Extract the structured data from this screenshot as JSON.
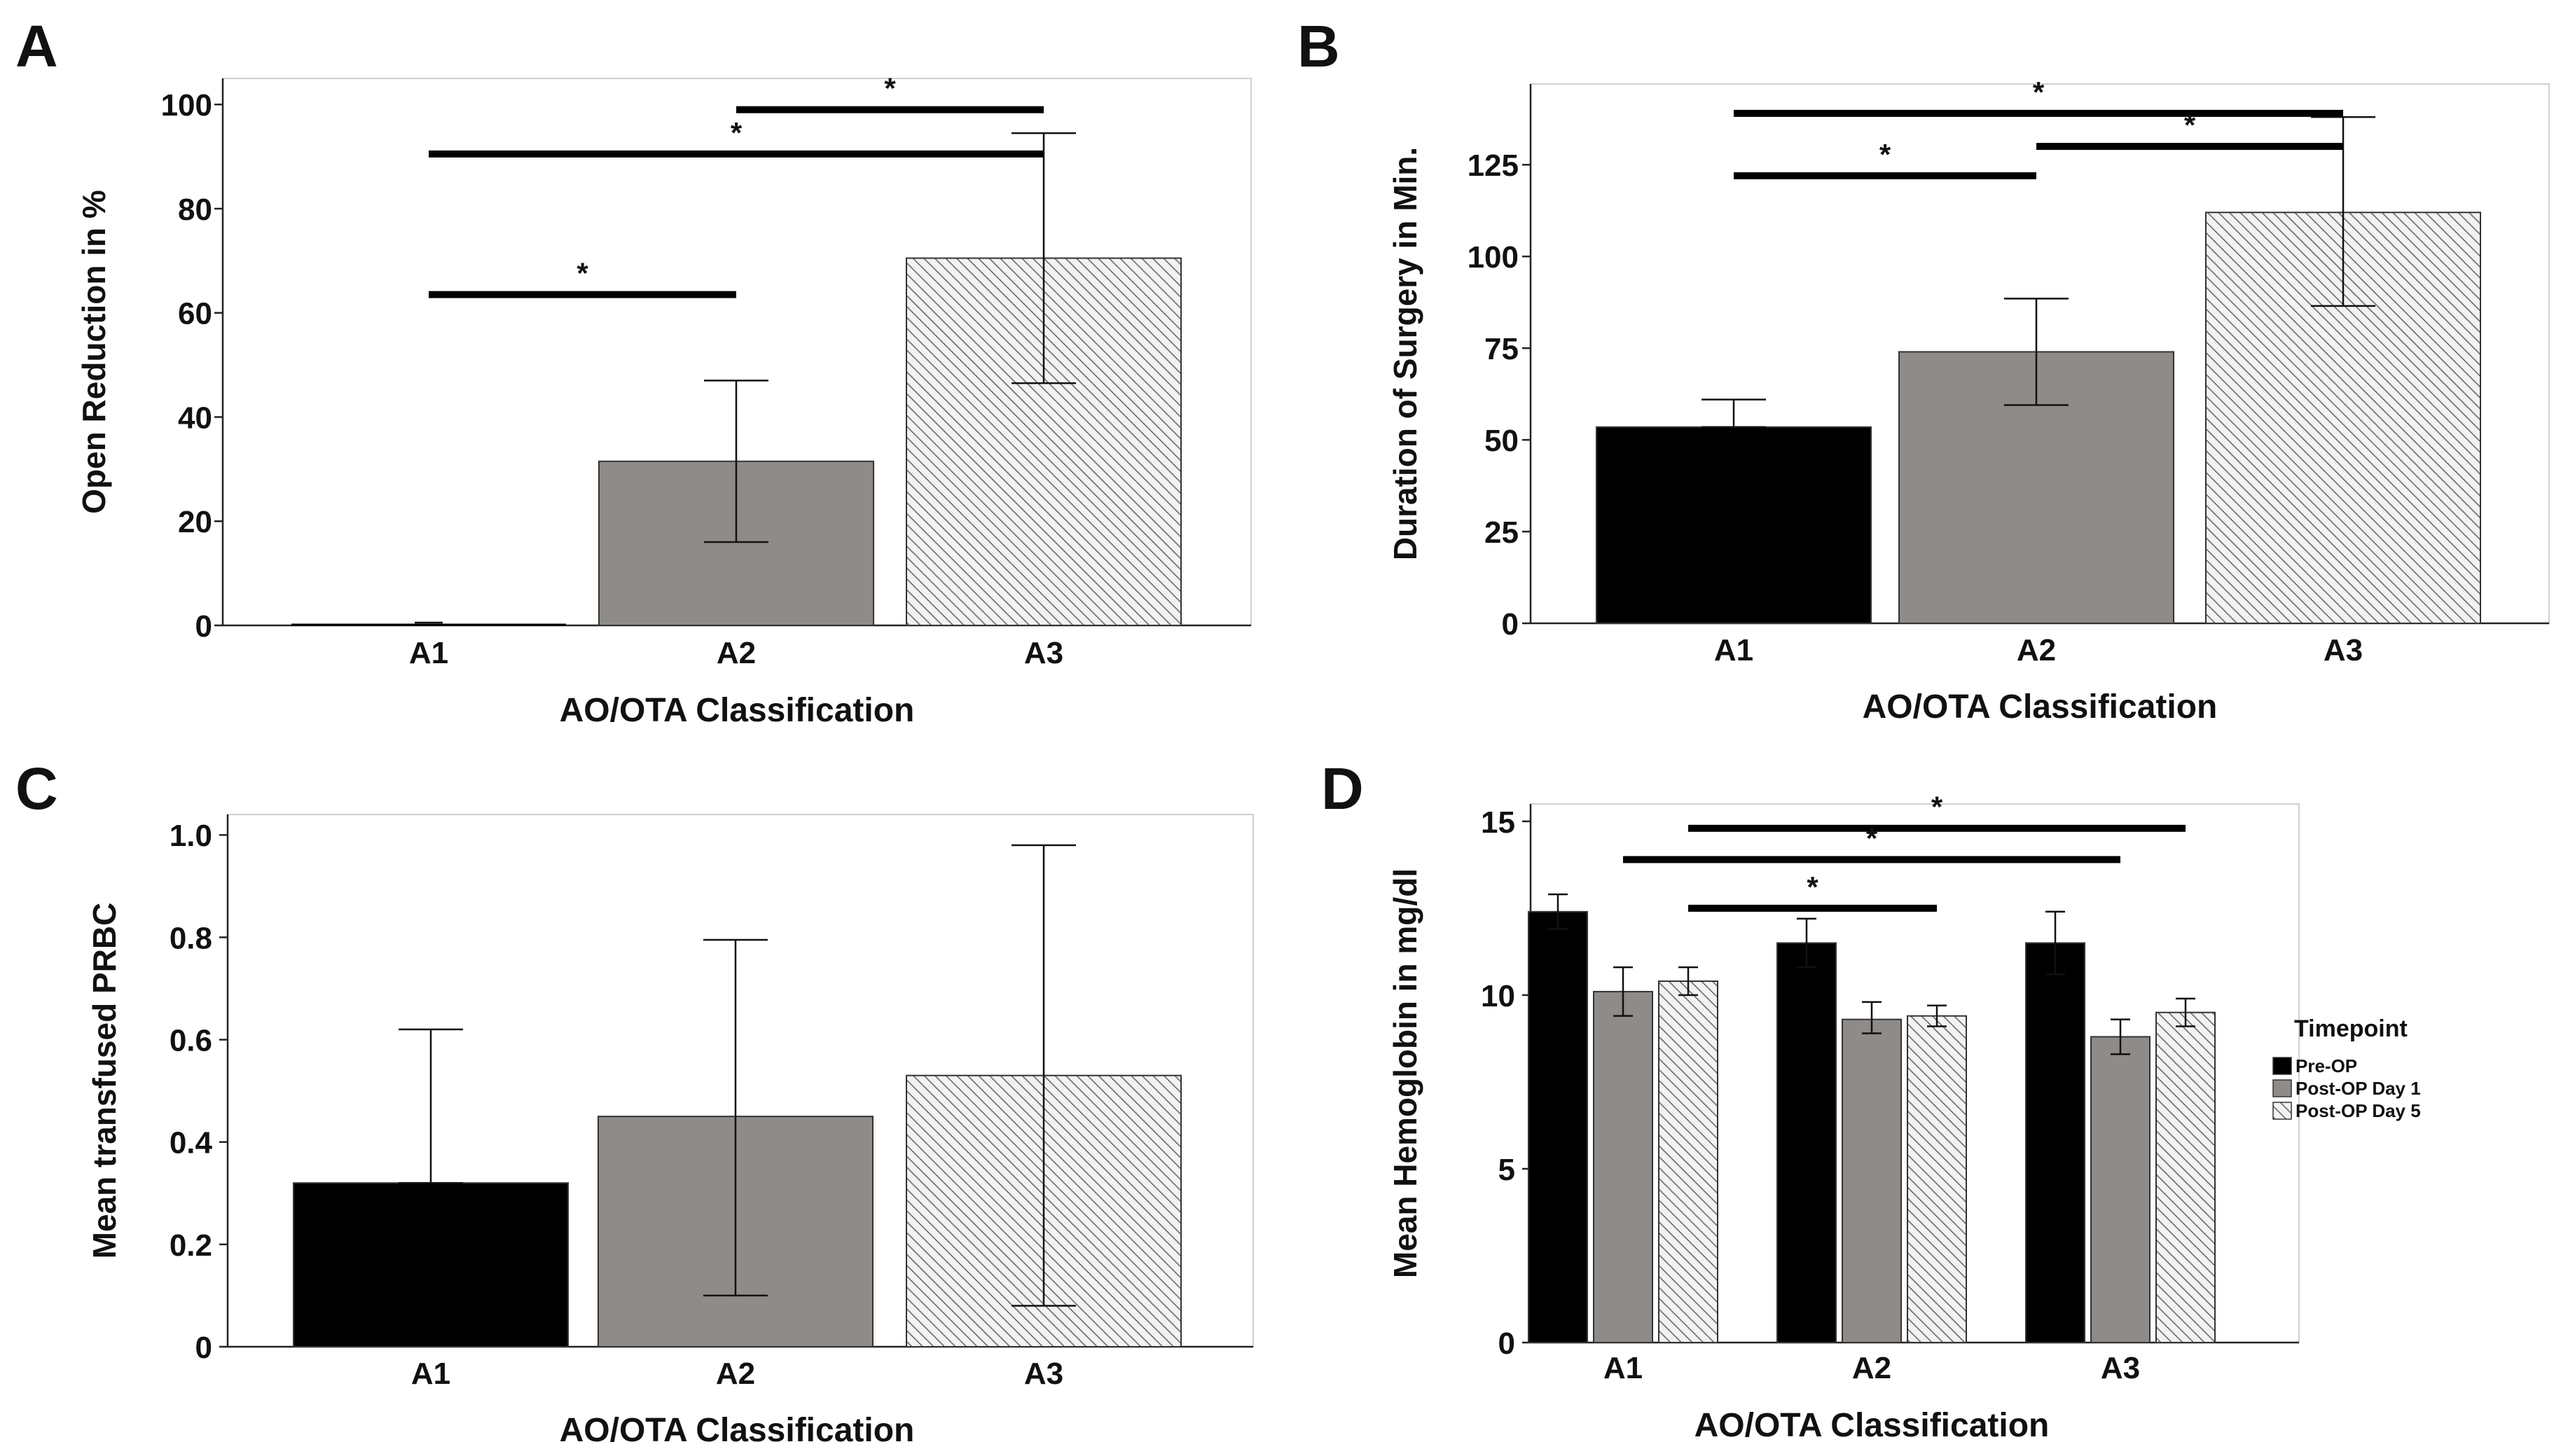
{
  "colors": {
    "black": "#000000",
    "gray": "#8f8b89",
    "hatch_bg": "#f2f2f2",
    "hatch_line": "#6a6a6a",
    "axis": "#222222"
  },
  "chart_data": [
    {
      "panel": "A",
      "type": "bar",
      "categories": [
        "A1",
        "A2",
        "A3"
      ],
      "values": [
        0,
        31.5,
        70.5
      ],
      "error_low": [
        0,
        16,
        46.5
      ],
      "error_high": [
        0,
        47,
        94.5
      ],
      "fills": [
        "black",
        "gray",
        "hatch"
      ],
      "yticks": [
        "0",
        "20",
        "40",
        "60",
        "80",
        "100"
      ],
      "ylim": [
        0,
        105
      ],
      "ylabel": "Open Reduction in %",
      "xlabel": "AO/OTA Classification",
      "significance": [
        {
          "from": "A1",
          "to": "A3",
          "y": 90.5,
          "label": "*"
        },
        {
          "from": "A2",
          "to": "A3",
          "y": 99,
          "label": "*"
        },
        {
          "from": "A1",
          "to": "A2",
          "y": 63.5,
          "label": "*"
        }
      ]
    },
    {
      "panel": "B",
      "type": "bar",
      "categories": [
        "A1",
        "A2",
        "A3"
      ],
      "values": [
        53.5,
        74,
        112
      ],
      "error_low": [
        53.5,
        59.5,
        86.5
      ],
      "error_high": [
        61,
        88.5,
        138
      ],
      "fills": [
        "black",
        "gray",
        "hatch"
      ],
      "yticks": [
        "0",
        "25",
        "50",
        "75",
        "100",
        "125"
      ],
      "ylim": [
        0,
        147
      ],
      "ylabel": "Duration of Surgery in Min.",
      "xlabel": "AO/OTA Classification",
      "significance": [
        {
          "from": "A1",
          "to": "A3",
          "y": 139,
          "label": "*"
        },
        {
          "from": "A1",
          "to": "A2",
          "y": 122,
          "label": "*"
        },
        {
          "from": "A2",
          "to": "A3",
          "y": 130,
          "label": "*"
        }
      ]
    },
    {
      "panel": "C",
      "type": "bar",
      "categories": [
        "A1",
        "A2",
        "A3"
      ],
      "values": [
        0.32,
        0.45,
        0.53
      ],
      "error_low": [
        0.32,
        0.1,
        0.08
      ],
      "error_high": [
        0.62,
        0.795,
        0.98
      ],
      "fills": [
        "black",
        "gray",
        "hatch"
      ],
      "yticks": [
        "0",
        "0.2",
        "0.4",
        "0.6",
        "0.8",
        "1.0"
      ],
      "ylim": [
        0,
        1.04
      ],
      "ylabel": "Mean transfused PRBC",
      "xlabel": "AO/OTA Classification",
      "significance": []
    },
    {
      "panel": "D",
      "type": "bar",
      "categories": [
        "A1",
        "A2",
        "A3"
      ],
      "series": [
        {
          "name": "Pre-OP",
          "fill": "black",
          "values": [
            12.4,
            11.5,
            11.5
          ],
          "error_low": [
            11.9,
            10.8,
            10.6
          ],
          "error_high": [
            12.9,
            12.2,
            12.4
          ]
        },
        {
          "name": "Post-OP Day 1",
          "fill": "gray",
          "values": [
            10.1,
            9.3,
            8.8
          ],
          "error_low": [
            9.4,
            8.9,
            8.3
          ],
          "error_high": [
            10.8,
            9.8,
            9.3
          ]
        },
        {
          "name": "Post-OP Day 5",
          "fill": "hatch",
          "values": [
            10.4,
            9.4,
            9.5
          ],
          "error_low": [
            10.0,
            9.1,
            9.1
          ],
          "error_high": [
            10.8,
            9.7,
            9.9
          ]
        }
      ],
      "yticks": [
        "0",
        "5",
        "10",
        "15"
      ],
      "ylim": [
        0,
        15.5
      ],
      "ylabel": "Mean Hemoglobin in mg/dl",
      "xlabel": "AO/OTA Classification",
      "legend_title": "Timepoint",
      "legend_position": "right",
      "significance": [
        {
          "from_group": 0,
          "from_series": 2,
          "to_group": 2,
          "to_series": 2,
          "y": 14.8,
          "label": "*"
        },
        {
          "from_group": 0,
          "from_series": 1,
          "to_group": 2,
          "to_series": 1,
          "y": 13.9,
          "label": "*"
        },
        {
          "from_group": 0,
          "from_series": 2,
          "to_group": 1,
          "to_series": 2,
          "y": 12.5,
          "label": "*"
        }
      ]
    }
  ]
}
